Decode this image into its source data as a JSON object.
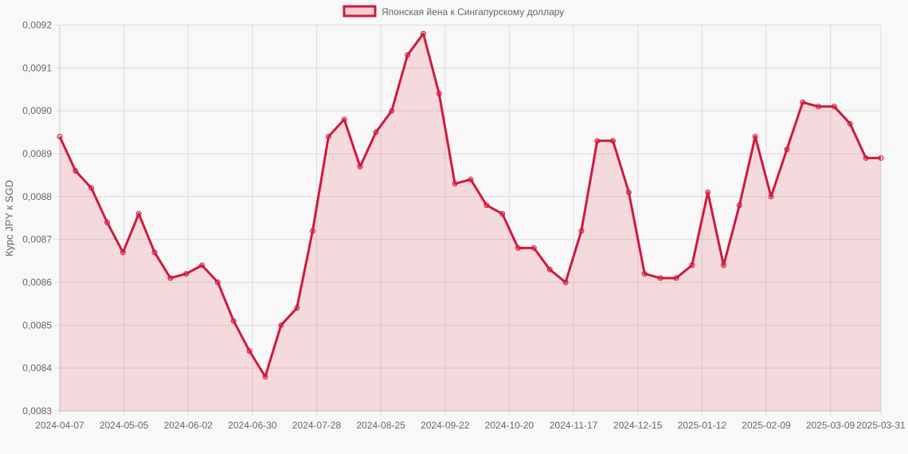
{
  "legend": {
    "label": "Японская йена к Сингапурскому доллару"
  },
  "colors": {
    "line": "#d0193d",
    "fill": "rgba(220, 40, 70, 0.15)",
    "background": "#f8f8f8",
    "grid": "#dcdcdc",
    "text": "#666666"
  },
  "chart_data": {
    "type": "line",
    "title": "",
    "xlabel": "",
    "ylabel": "Курс JPY к SGD",
    "ylim": [
      0.0083,
      0.0092
    ],
    "grid": true,
    "legend_position": "top",
    "y_ticks": [
      "0,0092",
      "0,0091",
      "0,0090",
      "0,0089",
      "0,0088",
      "0,0087",
      "0,0086",
      "0,0085",
      "0,0084",
      "0,0083"
    ],
    "x_ticks": [
      "2024-04-07",
      "2024-05-05",
      "2024-06-02",
      "2024-06-30",
      "2024-07-28",
      "2024-08-25",
      "2024-09-22",
      "2024-10-20",
      "2024-11-17",
      "2024-12-15",
      "2025-01-12",
      "2025-02-09",
      "2025-03-09",
      "2025-03-31"
    ],
    "series": [
      {
        "name": "Японская йена к Сингапурскому доллару",
        "x": [
          "2024-04-07",
          "2024-04-14",
          "2024-04-21",
          "2024-04-28",
          "2024-05-05",
          "2024-05-12",
          "2024-05-19",
          "2024-05-26",
          "2024-06-02",
          "2024-06-09",
          "2024-06-16",
          "2024-06-23",
          "2024-06-30",
          "2024-07-07",
          "2024-07-14",
          "2024-07-21",
          "2024-07-28",
          "2024-08-04",
          "2024-08-11",
          "2024-08-18",
          "2024-08-25",
          "2024-09-01",
          "2024-09-08",
          "2024-09-15",
          "2024-09-22",
          "2024-09-29",
          "2024-10-06",
          "2024-10-13",
          "2024-10-20",
          "2024-10-27",
          "2024-11-03",
          "2024-11-10",
          "2024-11-17",
          "2024-11-24",
          "2024-12-01",
          "2024-12-08",
          "2024-12-15",
          "2024-12-22",
          "2024-12-29",
          "2025-01-05",
          "2025-01-12",
          "2025-01-19",
          "2025-01-26",
          "2025-02-02",
          "2025-02-09",
          "2025-02-16",
          "2025-02-23",
          "2025-03-02",
          "2025-03-09",
          "2025-03-16",
          "2025-03-23",
          "2025-03-30",
          "2025-03-31"
        ],
        "values": [
          0.00894,
          0.00886,
          0.00882,
          0.00874,
          0.00867,
          0.00876,
          0.00867,
          0.00861,
          0.00862,
          0.00864,
          0.0086,
          0.00851,
          0.00844,
          0.00838,
          0.0085,
          0.00854,
          0.00872,
          0.00894,
          0.00898,
          0.00887,
          0.00895,
          0.009,
          0.00913,
          0.00918,
          0.00904,
          0.00883,
          0.00884,
          0.00878,
          0.00876,
          0.00868,
          0.00868,
          0.00863,
          0.0086,
          0.00872,
          0.00893,
          0.00893,
          0.00881,
          0.00862,
          0.00861,
          0.00861,
          0.00864,
          0.00881,
          0.00864,
          0.00878,
          0.00894,
          0.0088,
          0.00891,
          0.00902,
          0.00901,
          0.00901,
          0.00897,
          0.00889,
          0.00889
        ]
      }
    ]
  }
}
